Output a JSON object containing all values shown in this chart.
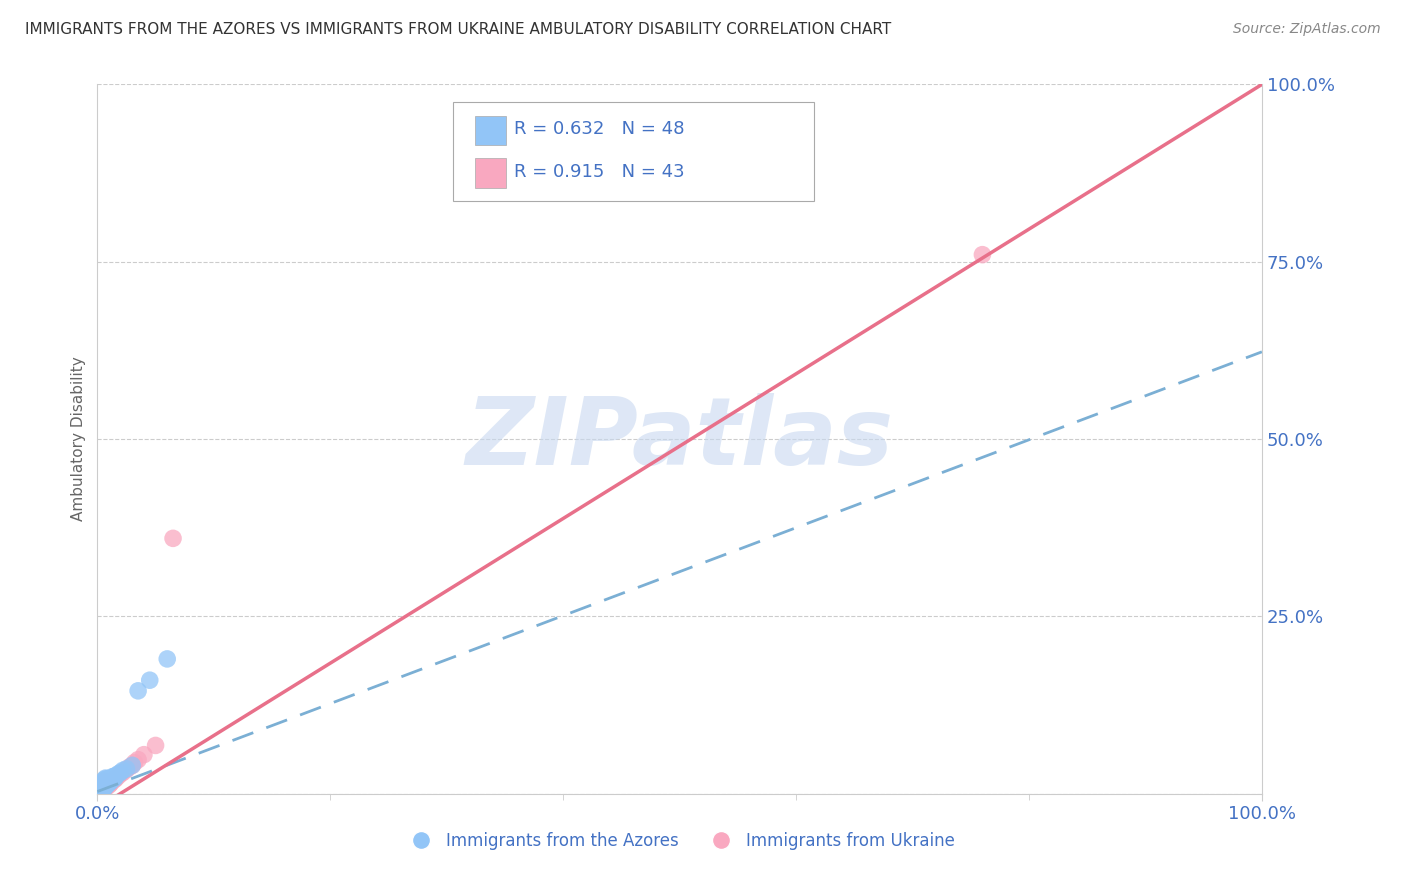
{
  "title": "IMMIGRANTS FROM THE AZORES VS IMMIGRANTS FROM UKRAINE AMBULATORY DISABILITY CORRELATION CHART",
  "source": "Source: ZipAtlas.com",
  "ylabel": "Ambulatory Disability",
  "legend_azores": "Immigrants from the Azores",
  "legend_ukraine": "Immigrants from Ukraine",
  "azores_R": 0.632,
  "azores_N": 48,
  "ukraine_R": 0.915,
  "ukraine_N": 43,
  "azores_color": "#92c5f7",
  "ukraine_color": "#f9a8c0",
  "azores_line_color": "#7bafd4",
  "ukraine_line_color": "#e8708a",
  "background_color": "#ffffff",
  "watermark": "ZIPatlas",
  "watermark_color": "#c8d8f0",
  "azores_line_slope": 0.62,
  "azores_line_intercept": 0.003,
  "ukraine_line_slope": 1.02,
  "ukraine_line_intercept": -0.02,
  "azores_x": [
    0.002,
    0.003,
    0.003,
    0.004,
    0.004,
    0.004,
    0.005,
    0.005,
    0.005,
    0.005,
    0.006,
    0.006,
    0.006,
    0.006,
    0.006,
    0.007,
    0.007,
    0.007,
    0.007,
    0.007,
    0.008,
    0.008,
    0.008,
    0.008,
    0.009,
    0.009,
    0.009,
    0.01,
    0.01,
    0.01,
    0.011,
    0.011,
    0.012,
    0.012,
    0.013,
    0.013,
    0.014,
    0.015,
    0.015,
    0.016,
    0.018,
    0.02,
    0.022,
    0.025,
    0.03,
    0.035,
    0.045,
    0.06
  ],
  "azores_y": [
    0.004,
    0.005,
    0.008,
    0.006,
    0.009,
    0.012,
    0.007,
    0.01,
    0.013,
    0.016,
    0.008,
    0.011,
    0.014,
    0.017,
    0.02,
    0.01,
    0.013,
    0.016,
    0.019,
    0.022,
    0.012,
    0.015,
    0.018,
    0.021,
    0.014,
    0.017,
    0.02,
    0.015,
    0.018,
    0.021,
    0.017,
    0.02,
    0.018,
    0.022,
    0.02,
    0.024,
    0.022,
    0.022,
    0.025,
    0.025,
    0.028,
    0.03,
    0.033,
    0.035,
    0.04,
    0.145,
    0.16,
    0.19
  ],
  "ukraine_x": [
    0.002,
    0.003,
    0.003,
    0.004,
    0.004,
    0.004,
    0.005,
    0.005,
    0.005,
    0.005,
    0.006,
    0.006,
    0.006,
    0.006,
    0.006,
    0.007,
    0.007,
    0.007,
    0.007,
    0.008,
    0.008,
    0.008,
    0.009,
    0.009,
    0.01,
    0.01,
    0.011,
    0.012,
    0.013,
    0.015,
    0.016,
    0.018,
    0.02,
    0.022,
    0.025,
    0.028,
    0.03,
    0.032,
    0.035,
    0.04,
    0.05,
    0.065,
    0.76
  ],
  "ukraine_y": [
    0.002,
    0.003,
    0.006,
    0.004,
    0.007,
    0.01,
    0.005,
    0.008,
    0.011,
    0.014,
    0.006,
    0.009,
    0.012,
    0.015,
    0.018,
    0.008,
    0.011,
    0.014,
    0.017,
    0.01,
    0.013,
    0.016,
    0.012,
    0.015,
    0.012,
    0.016,
    0.014,
    0.016,
    0.018,
    0.02,
    0.022,
    0.025,
    0.028,
    0.03,
    0.034,
    0.038,
    0.04,
    0.044,
    0.048,
    0.055,
    0.068,
    0.36,
    0.76
  ],
  "xmin": 0.0,
  "xmax": 1.0,
  "ymin": 0.0,
  "ymax": 1.0,
  "yticks": [
    0.0,
    0.25,
    0.5,
    0.75,
    1.0
  ],
  "ytick_labels": [
    "",
    "25.0%",
    "50.0%",
    "75.0%",
    "100.0%"
  ],
  "xtick_labels": [
    "0.0%",
    "100.0%"
  ]
}
